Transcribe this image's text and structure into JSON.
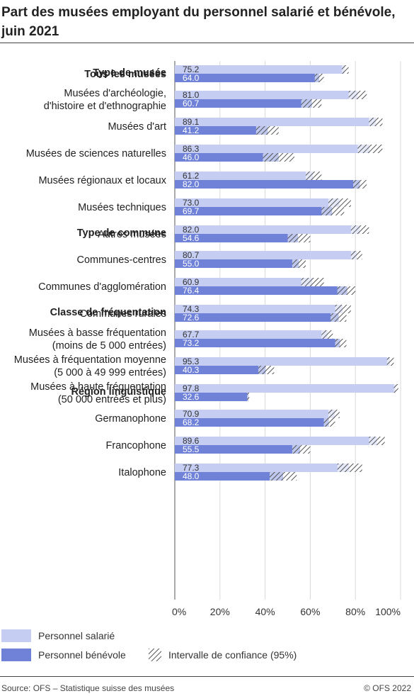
{
  "title": "Part des musées employant du personnel salarié et bénévole, juin 2021",
  "colors": {
    "salaried": "#c5cdf2",
    "volunteer": "#6f82d8",
    "hatch": "#555555",
    "grid": "#d9d9d9"
  },
  "legend": {
    "salaried": "Personnel salarié",
    "volunteer": "Personnel bénévole",
    "ci": "Intervalle de confiance (95%)"
  },
  "source": "Source: OFS – Statistique suisse des musées",
  "copyright": "© OFS 2022",
  "chart_data": {
    "type": "bar",
    "orientation": "horizontal",
    "xlim": [
      0,
      100
    ],
    "xticks": [
      "0%",
      "20%",
      "40%",
      "60%",
      "80%",
      "100%"
    ],
    "groups": [
      {
        "heading": "",
        "items": [
          {
            "label": [
              "Tous les musées"
            ],
            "bold": true,
            "salaried": 75.2,
            "volunteer": 64.0,
            "salaried_ci": [
              74,
              77
            ],
            "volunteer_ci": [
              62,
              66
            ]
          }
        ]
      },
      {
        "heading": "Type de musée",
        "items": [
          {
            "label": [
              "Musées d'archéologie,",
              "d'histoire et d'ethnographie"
            ],
            "salaried": 81.0,
            "volunteer": 60.7,
            "salaried_ci": [
              77,
              85
            ],
            "volunteer_ci": [
              56,
              65
            ]
          },
          {
            "label": [
              "Musées d'art"
            ],
            "salaried": 89.1,
            "volunteer": 41.2,
            "salaried_ci": [
              86,
              92
            ],
            "volunteer_ci": [
              36,
              46
            ]
          },
          {
            "label": [
              "Musées de sciences naturelles"
            ],
            "salaried": 86.3,
            "volunteer": 46.0,
            "salaried_ci": [
              81,
              92
            ],
            "volunteer_ci": [
              39,
              53
            ]
          },
          {
            "label": [
              "Musées régionaux et locaux"
            ],
            "salaried": 61.2,
            "volunteer": 82.0,
            "salaried_ci": [
              58,
              65
            ],
            "volunteer_ci": [
              79,
              85
            ]
          },
          {
            "label": [
              "Musées techniques"
            ],
            "salaried": 73.0,
            "volunteer": 69.7,
            "salaried_ci": [
              68,
              78
            ],
            "volunteer_ci": [
              65,
              75
            ]
          },
          {
            "label": [
              "Autres musées"
            ],
            "salaried": 82.0,
            "volunteer": 54.6,
            "salaried_ci": [
              78,
              86
            ],
            "volunteer_ci": [
              50,
              60
            ]
          }
        ]
      },
      {
        "heading": "Type de commune",
        "items": [
          {
            "label": [
              "Communes-centres"
            ],
            "salaried": 80.7,
            "volunteer": 55.0,
            "salaried_ci": [
              78,
              83
            ],
            "volunteer_ci": [
              52,
              58
            ]
          },
          {
            "label": [
              "Communes d'agglomération"
            ],
            "salaried": 60.9,
            "volunteer": 76.4,
            "salaried_ci": [
              56,
              66
            ],
            "volunteer_ci": [
              72,
              80
            ]
          },
          {
            "label": [
              "Communes rurales"
            ],
            "salaried": 74.3,
            "volunteer": 72.6,
            "salaried_ci": [
              71,
              78
            ],
            "volunteer_ci": [
              69,
              76
            ]
          }
        ]
      },
      {
        "heading": "Classe de fréquentation",
        "items": [
          {
            "label": [
              "Musées à basse fréquentation",
              "(moins de 5 000 entrées)"
            ],
            "salaried": 67.7,
            "volunteer": 73.2,
            "salaried_ci": [
              65,
              70
            ],
            "volunteer_ci": [
              71,
              76
            ]
          },
          {
            "label": [
              "Musées à fréquentation moyenne",
              "(5 000 à 49 999 entrées)"
            ],
            "salaried": 95.3,
            "volunteer": 40.3,
            "salaried_ci": [
              94,
              97
            ],
            "volunteer_ci": [
              37,
              44
            ]
          },
          {
            "label": [
              "Musées à haute fréquentation",
              "(50 000 entrées et plus)"
            ],
            "salaried": 97.8,
            "volunteer": 32.6,
            "salaried_ci": [
              97,
              99
            ],
            "volunteer_ci": [
              32,
              33
            ]
          }
        ]
      },
      {
        "heading": "Région linguistique",
        "items": [
          {
            "label": [
              "Germanophone"
            ],
            "salaried": 70.9,
            "volunteer": 68.2,
            "salaried_ci": [
              68,
              73
            ],
            "volunteer_ci": [
              66,
              71
            ]
          },
          {
            "label": [
              "Francophone"
            ],
            "salaried": 89.6,
            "volunteer": 55.5,
            "salaried_ci": [
              86,
              93
            ],
            "volunteer_ci": [
              52,
              60
            ]
          },
          {
            "label": [
              "Italophone"
            ],
            "salaried": 77.3,
            "volunteer": 48.0,
            "salaried_ci": [
              72,
              83
            ],
            "volunteer_ci": [
              42,
              54
            ]
          }
        ]
      }
    ]
  }
}
